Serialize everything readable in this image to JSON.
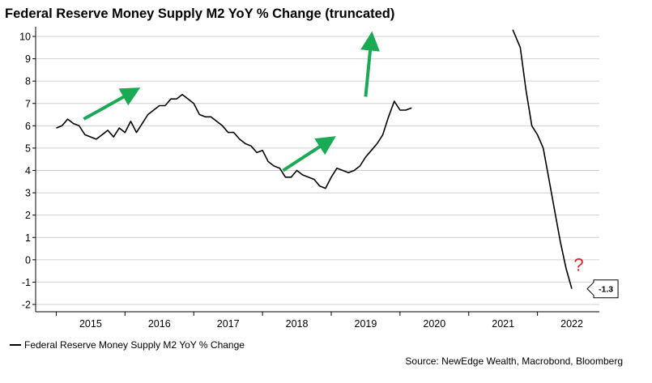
{
  "title": "Federal Reserve Money Supply M2 YoY % Change (truncated)",
  "source": "Source: NewEdge Wealth, Macrobond, Bloomberg",
  "legend_label": "Federal Reserve Money Supply M2 YoY % Change",
  "annotation": {
    "question": "?",
    "callout": "-1.3"
  },
  "colors": {
    "line": "#000000",
    "arrow": "#1aaa55",
    "question": "#e02020",
    "grid": "#d0d0d0"
  },
  "chart_data": {
    "type": "line",
    "title": "Federal Reserve Money Supply M2 YoY % Change (truncated)",
    "ylim": [
      -2,
      10
    ],
    "yticks": [
      -2,
      -1,
      0,
      1,
      2,
      3,
      4,
      5,
      6,
      7,
      8,
      9,
      10
    ],
    "xticks": [
      "2015",
      "2016",
      "2017",
      "2018",
      "2019",
      "2020",
      "2021",
      "2022"
    ],
    "grid": "horizontal",
    "legend_position": "bottom-left",
    "series": [
      {
        "name": "Federal Reserve Money Supply M2 YoY % Change",
        "x": [
          2015.0,
          2015.083,
          2015.167,
          2015.25,
          2015.333,
          2015.417,
          2015.5,
          2015.583,
          2015.667,
          2015.75,
          2015.833,
          2015.917,
          2016.0,
          2016.083,
          2016.167,
          2016.25,
          2016.333,
          2016.417,
          2016.5,
          2016.583,
          2016.667,
          2016.75,
          2016.833,
          2016.917,
          2017.0,
          2017.083,
          2017.167,
          2017.25,
          2017.333,
          2017.417,
          2017.5,
          2017.583,
          2017.667,
          2017.75,
          2017.833,
          2017.917,
          2018.0,
          2018.083,
          2018.167,
          2018.25,
          2018.333,
          2018.417,
          2018.5,
          2018.583,
          2018.667,
          2018.75,
          2018.833,
          2018.917,
          2019.0,
          2019.083,
          2019.167,
          2019.25,
          2019.333,
          2019.417,
          2019.5,
          2019.583,
          2019.667,
          2019.75,
          2019.833,
          2019.917,
          2020.0,
          2020.083,
          2020.17,
          2021.64,
          2021.75,
          2021.833,
          2021.917,
          2022.0,
          2022.083,
          2022.167,
          2022.25,
          2022.333,
          2022.417,
          2022.5
        ],
        "y": [
          5.9,
          6.0,
          6.3,
          6.1,
          6.0,
          5.6,
          5.5,
          5.4,
          5.6,
          5.8,
          5.5,
          5.9,
          5.7,
          6.2,
          5.7,
          6.1,
          6.5,
          6.7,
          6.9,
          6.9,
          7.2,
          7.2,
          7.4,
          7.2,
          7.0,
          6.5,
          6.4,
          6.4,
          6.2,
          6.0,
          5.7,
          5.7,
          5.4,
          5.2,
          5.1,
          4.8,
          4.9,
          4.4,
          4.2,
          4.1,
          3.7,
          3.7,
          4.0,
          3.8,
          3.7,
          3.6,
          3.3,
          3.2,
          3.7,
          4.1,
          4.0,
          3.9,
          4.0,
          4.2,
          4.6,
          4.9,
          5.2,
          5.6,
          6.4,
          7.1,
          6.7,
          6.7,
          6.8,
          10.5,
          9.5,
          7.6,
          6.0,
          5.6,
          5.0,
          3.6,
          2.2,
          0.8,
          -0.4,
          -1.3
        ],
        "truncated_above": 10.3
      }
    ],
    "annotations": [
      {
        "type": "arrow",
        "from": [
          2015.4,
          6.3
        ],
        "to": [
          2016.1,
          7.5
        ]
      },
      {
        "type": "arrow",
        "from": [
          2018.3,
          4.0
        ],
        "to": [
          2018.95,
          5.3
        ]
      },
      {
        "type": "arrow",
        "from": [
          2019.5,
          7.3
        ],
        "to": [
          2019.58,
          9.8
        ]
      },
      {
        "type": "text",
        "text": "?",
        "at": [
          2022.6,
          -0.5
        ]
      },
      {
        "type": "callout",
        "text": "-1.3",
        "at": [
          2022.5,
          -1.3
        ]
      }
    ]
  }
}
